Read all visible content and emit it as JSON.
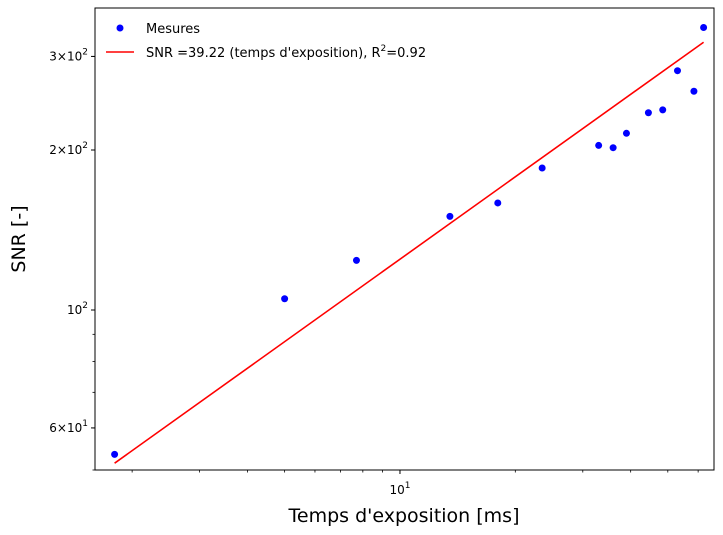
{
  "chart_data": {
    "type": "scatter",
    "xlabel": "Temps d'exposition [ms]",
    "ylabel": "SNR [-]",
    "x_scale": "log",
    "y_scale": "log",
    "xlim": [
      1.6,
      66
    ],
    "ylim": [
      50,
      370
    ],
    "grid": false,
    "legend_position": "top-left",
    "x_ticks": [
      {
        "value": 10,
        "base": "10",
        "exp": "1"
      }
    ],
    "y_ticks": [
      {
        "value": 60,
        "mant": "6",
        "base": "10",
        "exp": "1"
      },
      {
        "value": 100,
        "mant": "",
        "base": "10",
        "exp": "2"
      },
      {
        "value": 200,
        "mant": "2",
        "base": "10",
        "exp": "2"
      },
      {
        "value": 300,
        "mant": "3",
        "base": "10",
        "exp": "2"
      }
    ],
    "series": [
      {
        "name": "Mesures",
        "kind": "scatter",
        "color": "#0000ff",
        "points": [
          {
            "x": 1.8,
            "y": 53.5
          },
          {
            "x": 5.0,
            "y": 105
          },
          {
            "x": 7.7,
            "y": 124
          },
          {
            "x": 13.5,
            "y": 150
          },
          {
            "x": 18.0,
            "y": 159
          },
          {
            "x": 23.5,
            "y": 185
          },
          {
            "x": 33.0,
            "y": 204
          },
          {
            "x": 36.0,
            "y": 202
          },
          {
            "x": 39.0,
            "y": 215
          },
          {
            "x": 44.5,
            "y": 235
          },
          {
            "x": 48.5,
            "y": 238
          },
          {
            "x": 53.0,
            "y": 282
          },
          {
            "x": 58.5,
            "y": 258
          },
          {
            "x": 62.0,
            "y": 340
          }
        ]
      },
      {
        "name_main": "SNR =39.22 (temps d'exposition), R",
        "name_sup": "2",
        "name_tail": "=0.92",
        "kind": "line",
        "color": "#ff0000",
        "points": [
          {
            "x": 1.8,
            "y": 51.5
          },
          {
            "x": 62.0,
            "y": 319
          }
        ]
      }
    ]
  }
}
